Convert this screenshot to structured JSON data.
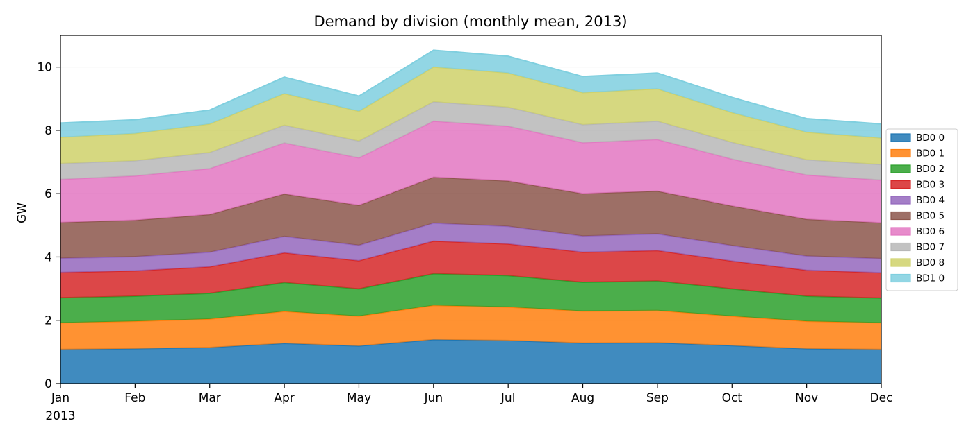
{
  "chart_data": {
    "type": "area",
    "stacked": true,
    "title": "Demand by division (monthly mean, 2013)",
    "xlabel": "",
    "ylabel": "GW",
    "x_year_label": "2013",
    "categories": [
      "Jan",
      "Feb",
      "Mar",
      "Apr",
      "May",
      "Jun",
      "Jul",
      "Aug",
      "Sep",
      "Oct",
      "Nov",
      "Dec"
    ],
    "ylim": [
      0,
      11
    ],
    "yticks": [
      0,
      2,
      4,
      6,
      8,
      10
    ],
    "grid": "horizontal",
    "legend_placement": "right",
    "series": [
      {
        "name": "BD0 0",
        "color": "#1f77b4",
        "values": [
          1.08,
          1.1,
          1.14,
          1.27,
          1.19,
          1.39,
          1.36,
          1.28,
          1.29,
          1.2,
          1.1,
          1.08
        ]
      },
      {
        "name": "BD0 1",
        "color": "#ff7f0e",
        "values": [
          0.84,
          0.87,
          0.9,
          1.01,
          0.94,
          1.08,
          1.06,
          1.01,
          1.02,
          0.93,
          0.87,
          0.84
        ]
      },
      {
        "name": "BD0 2",
        "color": "#2ca02c",
        "values": [
          0.79,
          0.79,
          0.81,
          0.91,
          0.86,
          1.0,
          0.99,
          0.91,
          0.93,
          0.86,
          0.79,
          0.78
        ]
      },
      {
        "name": "BD0 3",
        "color": "#d62728",
        "values": [
          0.8,
          0.8,
          0.84,
          0.94,
          0.89,
          1.03,
          1.0,
          0.95,
          0.96,
          0.88,
          0.82,
          0.8
        ]
      },
      {
        "name": "BD0 4",
        "color": "#9467bd",
        "values": [
          0.45,
          0.45,
          0.46,
          0.52,
          0.49,
          0.57,
          0.56,
          0.51,
          0.53,
          0.49,
          0.45,
          0.45
        ]
      },
      {
        "name": "BD0 5",
        "color": "#8c564b",
        "values": [
          1.13,
          1.15,
          1.19,
          1.34,
          1.26,
          1.45,
          1.43,
          1.34,
          1.35,
          1.25,
          1.16,
          1.13
        ]
      },
      {
        "name": "BD0 6",
        "color": "#e377c2",
        "values": [
          1.36,
          1.4,
          1.45,
          1.61,
          1.5,
          1.77,
          1.73,
          1.61,
          1.63,
          1.48,
          1.4,
          1.35
        ]
      },
      {
        "name": "BD0 7",
        "color": "#b7b7b7",
        "values": [
          0.5,
          0.48,
          0.51,
          0.56,
          0.53,
          0.61,
          0.6,
          0.57,
          0.58,
          0.53,
          0.48,
          0.49
        ]
      },
      {
        "name": "BD0 8",
        "color": "#cfd16a",
        "values": [
          0.83,
          0.86,
          0.9,
          1.0,
          0.94,
          1.1,
          1.08,
          1.01,
          1.02,
          0.94,
          0.87,
          0.84
        ]
      },
      {
        "name": "BD1 0",
        "color": "#7fcfdf",
        "values": [
          0.45,
          0.43,
          0.44,
          0.52,
          0.48,
          0.53,
          0.53,
          0.51,
          0.5,
          0.48,
          0.43,
          0.44
        ]
      }
    ]
  }
}
